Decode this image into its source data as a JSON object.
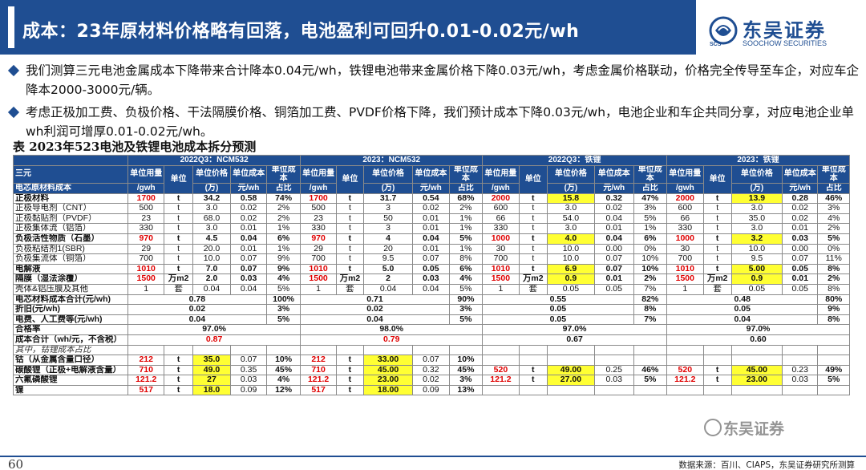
{
  "title": "成本：23年原材料价格略有回落，电池盈利可回升0.01-0.02元/wh",
  "logo": {
    "name_cn": "东吴证券",
    "name_en": "SOOCHOW SECURITIES",
    "tag": "SCS"
  },
  "bullets": [
    "我们测算三元电池金属成本下降带来合计降本0.04元/wh，铁锂电池带来金属价格下降0.03元/wh，考虑金属价格联动，价格完全传导至车企，对应车企降本2000-3000元/辆。",
    "考虑正极加工费、负极价格、干法隔膜价格、铜箔加工费、PVDF价格下降，我们预计成本下降0.03元/wh，电池企业和车企共同分享，对应电池企业单wh利润可增厚0.01-0.02元/wh。"
  ],
  "table_title": "表 2023年523电池及铁锂电池成本拆分预测",
  "table": {
    "corner_top": "三元",
    "corner_bottom": "电芯原材料成本",
    "groups": [
      "2022Q3：NCM532",
      "2023：NCM532",
      "2022Q3：铁锂",
      "2023：铁锂"
    ],
    "sub_top": [
      "单位用量",
      "",
      "单位价格",
      "单位成本",
      "单位成本"
    ],
    "sub_bottom": [
      "/gwh",
      "单位",
      "(万)",
      "元/wh",
      "占比"
    ],
    "rows": [
      {
        "label": "正极材料",
        "bold": true,
        "cells": [
          "1700",
          "t",
          "34.2",
          "0.58",
          "74%",
          "1700",
          "t",
          "31.7",
          "0.54",
          "68%",
          "2000",
          "t",
          "15.8",
          "0.32",
          "47%",
          "2000",
          "t",
          "13.9",
          "0.28",
          "46%"
        ]
      },
      {
        "label": "正极导电剂（CNT）",
        "cells": [
          "500",
          "t",
          "3.0",
          "0.02",
          "2%",
          "500",
          "t",
          "3",
          "0.02",
          "2%",
          "600",
          "t",
          "3.0",
          "0.02",
          "3%",
          "600",
          "t",
          "3.0",
          "0.02",
          "3%"
        ]
      },
      {
        "label": "正极黏贴剂（PVDF）",
        "cells": [
          "23",
          "t",
          "68.0",
          "0.02",
          "2%",
          "23",
          "t",
          "50",
          "0.01",
          "1%",
          "66",
          "t",
          "54.0",
          "0.04",
          "5%",
          "66",
          "t",
          "35.0",
          "0.02",
          "4%"
        ]
      },
      {
        "label": "正极集体流（铝箔）",
        "cells": [
          "330",
          "t",
          "3.0",
          "0.01",
          "1%",
          "330",
          "t",
          "3",
          "0.01",
          "1%",
          "330",
          "t",
          "3.0",
          "0.01",
          "1%",
          "330",
          "t",
          "3.0",
          "0.01",
          "2%"
        ]
      },
      {
        "label": "负极活性物质（石墨）",
        "bold": true,
        "cells": [
          "970",
          "t",
          "4.5",
          "0.04",
          "6%",
          "970",
          "t",
          "4",
          "0.04",
          "5%",
          "1000",
          "t",
          "4.0",
          "0.04",
          "6%",
          "1000",
          "t",
          "3.2",
          "0.03",
          "5%"
        ]
      },
      {
        "label": "负极粘结剂1(SBR)",
        "cells": [
          "29",
          "t",
          "20.0",
          "0.01",
          "1%",
          "29",
          "t",
          "20",
          "0.01",
          "1%",
          "30",
          "t",
          "10.0",
          "0.00",
          "0%",
          "30",
          "t",
          "10.0",
          "0.00",
          "0%"
        ]
      },
      {
        "label": "负极集流体（铜箔）",
        "cells": [
          "700",
          "t",
          "10.0",
          "0.07",
          "9%",
          "700",
          "t",
          "9.5",
          "0.07",
          "8%",
          "700",
          "t",
          "10.0",
          "0.07",
          "10%",
          "700",
          "t",
          "9.5",
          "0.07",
          "11%"
        ]
      },
      {
        "label": "电解液",
        "bold": true,
        "cells": [
          "1010",
          "t",
          "7.0",
          "0.07",
          "9%",
          "1010",
          "t",
          "5.0",
          "0.05",
          "6%",
          "1010",
          "t",
          "6.9",
          "0.07",
          "10%",
          "1010",
          "t",
          "5.00",
          "0.05",
          "8%"
        ]
      },
      {
        "label": "隔膜（湿法涂覆）",
        "bold": true,
        "cells": [
          "1500",
          "万m2",
          "2.0",
          "0.03",
          "4%",
          "1500",
          "万m2",
          "2",
          "0.03",
          "4%",
          "1500",
          "万m2",
          "0.9",
          "0.01",
          "2%",
          "1500",
          "万m2",
          "0.9",
          "0.01",
          "2%"
        ]
      },
      {
        "label": "壳体&铝压膜及其他",
        "cells": [
          "1",
          "套",
          "0.04",
          "0.04",
          "5%",
          "1",
          "套",
          "0.04",
          "0.04",
          "5%",
          "1",
          "套",
          "0.05",
          "0.05",
          "7%",
          "1",
          "套",
          "0.05",
          "0.05",
          "8%"
        ]
      }
    ],
    "summary_rows": [
      {
        "label": "电芯材料成本合计(元/wh)",
        "vals": [
          "0.78",
          "100%",
          "0.71",
          "90%",
          "0.55",
          "82%",
          "0.48",
          "80%"
        ]
      },
      {
        "label": "折旧(元/wh)",
        "vals": [
          "0.02",
          "3%",
          "0.02",
          "3%",
          "0.05",
          "8%",
          "0.05",
          "9%"
        ]
      },
      {
        "label": "电费、人工费等(元/wh)",
        "vals": [
          "0.04",
          "5%",
          "0.04",
          "5%",
          "0.05",
          "7%",
          "0.04",
          "8%"
        ]
      }
    ],
    "yield_row": {
      "label": "合格率",
      "vals": [
        "97.0%",
        "98.0%",
        "97.0%",
        "97.0%"
      ]
    },
    "total_row": {
      "label": "成本合计（wh/元，不含税）",
      "vals": [
        "0.87",
        "0.79",
        "0.67",
        "0.60"
      ]
    },
    "metal_header": "其中，钴锂成本占比",
    "metal_rows": [
      {
        "label": "钴（从金属含量口径）",
        "cells": [
          "212",
          "t",
          "35.0",
          "0.07",
          "10%",
          "212",
          "t",
          "33.00",
          "0.07",
          "10%",
          "",
          "",
          "",
          "",
          "",
          "",
          "",
          "",
          "",
          ""
        ]
      },
      {
        "label": "碳酸锂（正极+电解液含量）",
        "cells": [
          "710",
          "t",
          "49.0",
          "0.35",
          "45%",
          "710",
          "t",
          "45.00",
          "0.32",
          "45%",
          "520",
          "t",
          "49.00",
          "0.25",
          "46%",
          "520",
          "t",
          "45.00",
          "0.23",
          "49%"
        ]
      },
      {
        "label": "六氟磷酸锂",
        "cells": [
          "121.2",
          "t",
          "27",
          "0.03",
          "4%",
          "121.2",
          "t",
          "23.00",
          "0.02",
          "3%",
          "121.2",
          "t",
          "27.00",
          "0.03",
          "5%",
          "121.2",
          "t",
          "23.00",
          "0.03",
          "5%"
        ]
      },
      {
        "label": "镍",
        "cells": [
          "517",
          "t",
          "18.0",
          "0.09",
          "12%",
          "517",
          "t",
          "18.00",
          "0.09",
          "13%",
          "",
          "",
          "",
          "",
          "",
          "",
          "",
          "",
          "",
          ""
        ]
      }
    ]
  },
  "footer": {
    "page": "60",
    "source": "数据来源：百川、CIAPS，东吴证券研究所测算"
  },
  "watermark": "东吴证券"
}
